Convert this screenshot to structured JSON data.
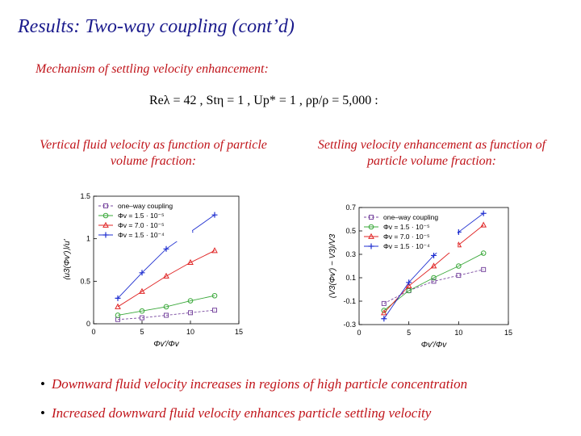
{
  "slide": {
    "title": "Results: Two-way coupling (cont’d)",
    "mechanism_heading": "Mechanism of settling velocity enhancement:",
    "parameters": "Reλ = 42 ,  Stη = 1 ,  Up* = 1 ,  ρp/ρ = 5,000 :",
    "caption_left": "Vertical fluid velocity as function of particle volume fraction:",
    "caption_right": "Settling velocity enhancement as function of particle volume fraction:",
    "bullets": [
      "Downward fluid velocity increases in regions of high particle concentration",
      "Increased downward fluid velocity enhances particle settling velocity"
    ],
    "bullet_symbol": "•"
  },
  "legend_labels": [
    "one–way coupling",
    "Φv = 1.5 · 10⁻⁵",
    "Φv = 7.0 · 10⁻⁵",
    "Φv = 1.5 · 10⁻⁴"
  ],
  "colors": {
    "title": "#1a1a8c",
    "accent_text": "#c0141a",
    "one_way": "#7a4aa0",
    "phi1": "#3aa83a",
    "phi2": "#e02424",
    "phi3": "#1f2fd0"
  },
  "chart_data": [
    {
      "type": "line",
      "xlabel": "Φv'/Φv",
      "ylabel": "⟨u3(Φv')⟩/u'",
      "xlim": [
        0,
        15
      ],
      "ylim": [
        0,
        1.5
      ],
      "xticks": [
        0,
        5,
        10,
        15
      ],
      "yticks": [
        0,
        0.5,
        1,
        1.5
      ],
      "legend_position": "top-left",
      "series": [
        {
          "name": "one–way coupling",
          "marker": "square",
          "dashed": true,
          "x": [
            2.5,
            5,
            7.5,
            10,
            12.5
          ],
          "values": [
            0.05,
            0.07,
            0.1,
            0.13,
            0.16
          ]
        },
        {
          "name": "Φv = 1.5 · 10⁻⁵",
          "marker": "circle",
          "dashed": false,
          "x": [
            2.5,
            5,
            7.5,
            10,
            12.5
          ],
          "values": [
            0.1,
            0.15,
            0.2,
            0.27,
            0.33
          ]
        },
        {
          "name": "Φv = 7.0 · 10⁻⁵",
          "marker": "triangle",
          "dashed": false,
          "x": [
            2.5,
            5,
            7.5,
            10,
            12.5
          ],
          "values": [
            0.2,
            0.38,
            0.56,
            0.72,
            0.86
          ]
        },
        {
          "name": "Φv = 1.5 · 10⁻⁴",
          "marker": "plus",
          "dashed": false,
          "x": [
            2.5,
            5,
            7.5,
            10,
            12.5
          ],
          "values": [
            0.3,
            0.6,
            0.88,
            1.08,
            1.28
          ]
        }
      ]
    },
    {
      "type": "line",
      "xlabel": "Φv'/Φv",
      "ylabel": "(V3(Φv') − V3)/V3",
      "xlim": [
        0,
        15
      ],
      "ylim": [
        -0.3,
        0.7
      ],
      "xticks": [
        0,
        5,
        10,
        15
      ],
      "yticks": [
        -0.3,
        -0.1,
        0.1,
        0.3,
        0.5,
        0.7
      ],
      "legend_position": "top-left",
      "series": [
        {
          "name": "one–way coupling",
          "marker": "square",
          "dashed": true,
          "x": [
            2.5,
            5,
            7.5,
            10,
            12.5
          ],
          "values": [
            -0.12,
            -0.01,
            0.07,
            0.12,
            0.17
          ]
        },
        {
          "name": "Φv = 1.5 · 10⁻⁵",
          "marker": "circle",
          "dashed": false,
          "x": [
            2.5,
            5,
            7.5,
            10,
            12.5
          ],
          "values": [
            -0.18,
            -0.01,
            0.1,
            0.2,
            0.31
          ]
        },
        {
          "name": "Φv = 7.0 · 10⁻⁵",
          "marker": "triangle",
          "dashed": false,
          "x": [
            2.5,
            5,
            7.5,
            10,
            12.5
          ],
          "values": [
            -0.2,
            0.03,
            0.2,
            0.38,
            0.55
          ]
        },
        {
          "name": "Φv = 1.5 · 10⁻⁴",
          "marker": "plus",
          "dashed": false,
          "x": [
            2.5,
            5,
            7.5,
            10,
            12.5
          ],
          "values": [
            -0.25,
            0.06,
            0.29,
            0.49,
            0.65
          ]
        }
      ]
    }
  ]
}
